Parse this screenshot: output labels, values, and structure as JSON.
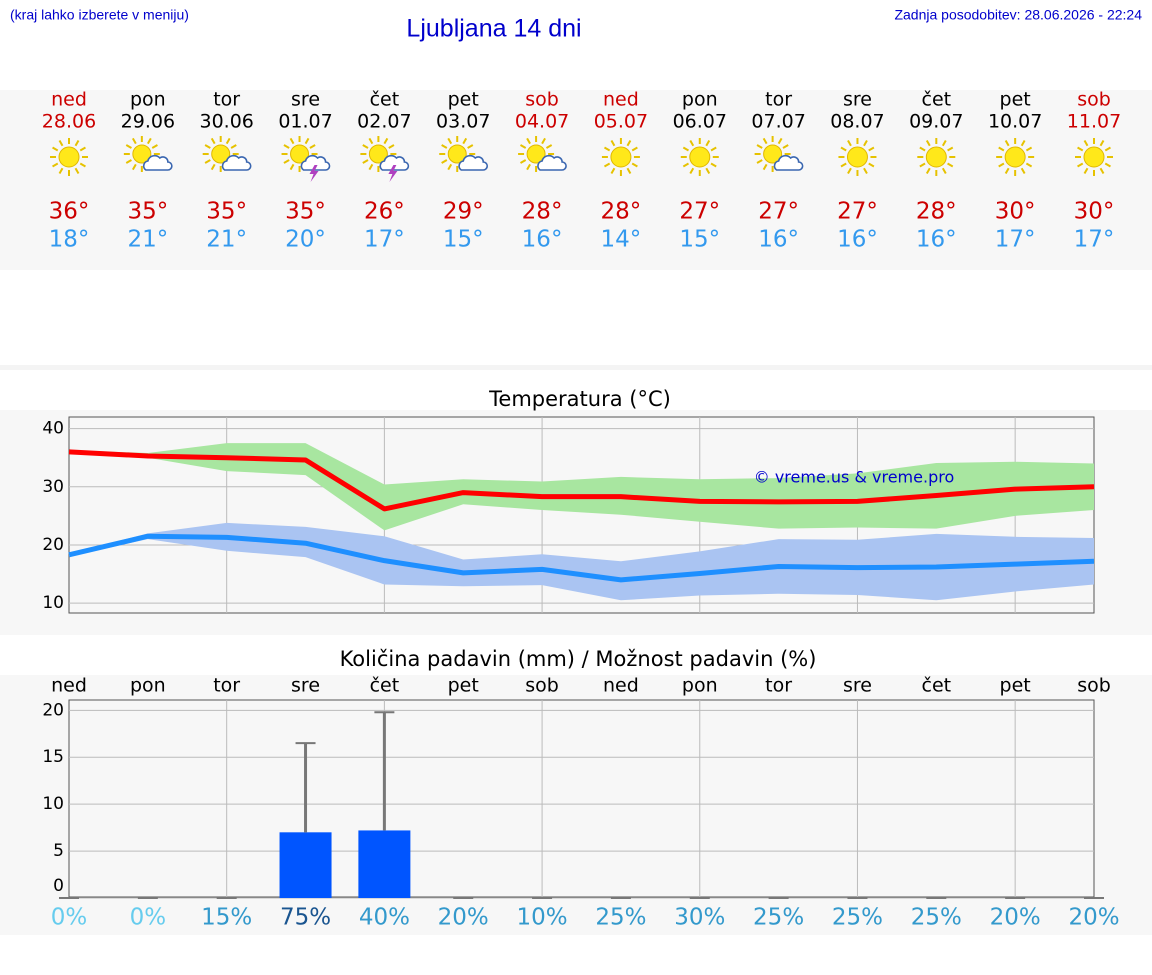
{
  "header": {
    "hint": "(kraj lahko izberete v meniju)",
    "title": "Ljubljana 14 dni",
    "updated": "Zadnja posodobitev: 28.06.2026 - 22:24"
  },
  "forecast": [
    {
      "day": "ned",
      "date": "28.06",
      "icon": "sun",
      "max": "36°",
      "min": "18°",
      "color": "#cc0000"
    },
    {
      "day": "pon",
      "date": "29.06",
      "icon": "sun-cloud",
      "max": "35°",
      "min": "21°",
      "color": "#000000"
    },
    {
      "day": "tor",
      "date": "30.06",
      "icon": "sun-cloud",
      "max": "35°",
      "min": "21°",
      "color": "#000000"
    },
    {
      "day": "sre",
      "date": "01.07",
      "icon": "storm",
      "max": "35°",
      "min": "20°",
      "color": "#000000"
    },
    {
      "day": "čet",
      "date": "02.07",
      "icon": "storm",
      "max": "26°",
      "min": "17°",
      "color": "#000000"
    },
    {
      "day": "pet",
      "date": "03.07",
      "icon": "sun-cloud",
      "max": "29°",
      "min": "15°",
      "color": "#000000"
    },
    {
      "day": "sob",
      "date": "04.07",
      "icon": "sun-cloud",
      "max": "28°",
      "min": "16°",
      "color": "#cc0000"
    },
    {
      "day": "ned",
      "date": "05.07",
      "icon": "sun",
      "max": "28°",
      "min": "14°",
      "color": "#cc0000"
    },
    {
      "day": "pon",
      "date": "06.07",
      "icon": "sun",
      "max": "27°",
      "min": "15°",
      "color": "#000000"
    },
    {
      "day": "tor",
      "date": "07.07",
      "icon": "sun-cloud",
      "max": "27°",
      "min": "16°",
      "color": "#000000"
    },
    {
      "day": "sre",
      "date": "08.07",
      "icon": "sun",
      "max": "27°",
      "min": "16°",
      "color": "#000000"
    },
    {
      "day": "čet",
      "date": "09.07",
      "icon": "sun",
      "max": "28°",
      "min": "16°",
      "color": "#000000"
    },
    {
      "day": "pet",
      "date": "10.07",
      "icon": "sun",
      "max": "30°",
      "min": "17°",
      "color": "#000000"
    },
    {
      "day": "sob",
      "date": "11.07",
      "icon": "sun",
      "max": "30°",
      "min": "17°",
      "color": "#cc0000"
    }
  ],
  "chart_data": [
    {
      "type": "line",
      "title": "Temperatura (°C)",
      "annotation": "© vreme.us & vreme.pro",
      "ylim": [
        8.3,
        42
      ],
      "yticks": [
        10,
        20,
        30,
        40
      ],
      "grid": true,
      "series": [
        {
          "color": "#ff0000",
          "band_color": "#a8e6a0",
          "values": [
            36,
            35.3,
            35,
            34.6,
            26.2,
            29,
            28.3,
            28.3,
            27.5,
            27.4,
            27.5,
            28.5,
            29.6,
            30
          ],
          "upper": [
            36.3,
            35.8,
            37.5,
            37.5,
            30.4,
            31.3,
            30.9,
            31.7,
            31.3,
            31.5,
            32.3,
            34.1,
            34.3,
            34
          ],
          "lower": [
            35.8,
            35,
            32.7,
            32,
            22.5,
            27,
            26,
            25.2,
            24,
            22.8,
            23,
            22.8,
            25,
            26
          ]
        },
        {
          "color": "#1e8fff",
          "band_color": "#aac4f2",
          "values": [
            18.3,
            21.5,
            21.3,
            20.3,
            17.3,
            15.2,
            15.8,
            14,
            15.1,
            16.3,
            16.1,
            16.2,
            16.7,
            17.2
          ],
          "upper": [
            18.5,
            22,
            23.8,
            23.1,
            21.5,
            17.5,
            18.4,
            17.2,
            18.9,
            21,
            20.9,
            21.9,
            21.4,
            21.2
          ],
          "lower": [
            18,
            21,
            19,
            17.9,
            13.2,
            12.9,
            13.1,
            10.5,
            11.3,
            11.6,
            11.4,
            10.5,
            12,
            13.2
          ]
        }
      ]
    },
    {
      "type": "bar",
      "title": "Količina padavin (mm) / Možnost padavin (%)",
      "color": "#0055ff",
      "categories": [
        "ned",
        "pon",
        "tor",
        "sre",
        "čet",
        "pet",
        "sob",
        "ned",
        "pon",
        "tor",
        "sre",
        "čet",
        "pet",
        "sob"
      ],
      "values": [
        0,
        0,
        0,
        7,
        7.2,
        0,
        0,
        0,
        0,
        0,
        0,
        0,
        0,
        0
      ],
      "upper": [
        0,
        0,
        0,
        16.5,
        19.8,
        0,
        0,
        0,
        0,
        0,
        0,
        0,
        0,
        0
      ],
      "probability": [
        0,
        0,
        15,
        75,
        40,
        20,
        10,
        25,
        30,
        25,
        25,
        25,
        20,
        20
      ],
      "probability_labels": [
        "0%",
        "0%",
        "15%",
        "75%",
        "40%",
        "20%",
        "10%",
        "25%",
        "30%",
        "25%",
        "25%",
        "25%",
        "20%",
        "20%"
      ],
      "ylim": [
        0,
        21.1
      ],
      "yticks": [
        0,
        5,
        10,
        15,
        20
      ],
      "grid": true
    }
  ]
}
